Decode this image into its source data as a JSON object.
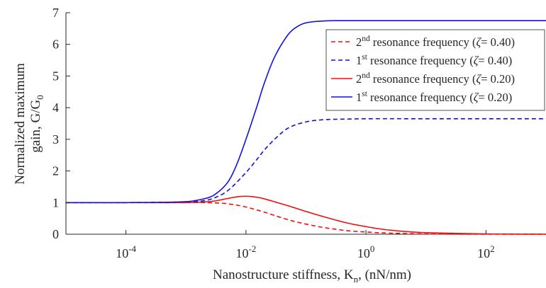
{
  "chart_data": {
    "type": "line",
    "xlabel": "Nanostructure stiffness, K_n, (nN/nm)",
    "ylabel": [
      "Normalized maximum",
      "gain, G/G_0"
    ],
    "x_scale": "log",
    "xlim": [
      1e-05,
      1000
    ],
    "ylim": [
      0,
      7
    ],
    "x_ticks": [
      0.0001,
      0.01,
      1,
      100
    ],
    "x_tick_labels": [
      {
        "base": "10",
        "exp": "-4"
      },
      {
        "base": "10",
        "exp": "-2"
      },
      {
        "base": "10",
        "exp": "0"
      },
      {
        "base": "10",
        "exp": "2"
      }
    ],
    "y_ticks": [
      0,
      1,
      2,
      3,
      4,
      5,
      6,
      7
    ],
    "y_tick_labels": [
      "0",
      "1",
      "2",
      "3",
      "4",
      "5",
      "6",
      "7"
    ],
    "grid": false,
    "legend_position": "top-right",
    "colors": {
      "blue": "#1010e0",
      "red": "#ee1111"
    },
    "series": [
      {
        "name": "2nd resonance frequency (ζ= 0.40)",
        "legend": {
          "pre": "2",
          "sup": "nd",
          "post": " resonance frequency (",
          "zeta": "ζ",
          "value": "= 0.40)"
        },
        "color": "#ee1111",
        "dash": "dashed",
        "x": [
          1e-05,
          0.0001,
          0.001,
          0.002,
          0.003,
          0.004,
          0.005,
          0.007,
          0.01,
          0.02,
          0.05,
          0.1,
          0.2,
          0.5,
          1,
          2,
          10,
          100,
          1000
        ],
        "y": [
          1,
          1,
          1,
          1,
          0.99,
          0.98,
          0.96,
          0.92,
          0.86,
          0.7,
          0.46,
          0.32,
          0.21,
          0.11,
          0.07,
          0.04,
          0.01,
          0.0,
          0.0
        ]
      },
      {
        "name": "1st resonance frequency (ζ= 0.40)",
        "legend": {
          "pre": "1",
          "sup": "st",
          "post": " resonance frequency (",
          "zeta": "ζ",
          "value": "= 0.40)"
        },
        "color": "#1010e0",
        "dash": "dashed",
        "x": [
          1e-05,
          0.0001,
          0.001,
          0.002,
          0.003,
          0.005,
          0.01,
          0.015,
          0.02,
          0.03,
          0.05,
          0.1,
          0.2,
          0.5,
          1,
          10,
          1000
        ],
        "y": [
          1,
          1,
          1.02,
          1.06,
          1.15,
          1.38,
          1.95,
          2.35,
          2.65,
          3.0,
          3.35,
          3.55,
          3.62,
          3.64,
          3.65,
          3.65,
          3.65
        ]
      },
      {
        "name": "2nd resonance frequency (ζ= 0.20)",
        "legend": {
          "pre": "2",
          "sup": "nd",
          "post": " resonance frequency (",
          "zeta": "ζ",
          "value": "= 0.20)"
        },
        "color": "#ee1111",
        "dash": "solid",
        "x": [
          1e-05,
          0.0001,
          0.001,
          0.002,
          0.003,
          0.005,
          0.007,
          0.01,
          0.015,
          0.02,
          0.05,
          0.1,
          0.2,
          0.5,
          1,
          2,
          5,
          10,
          100,
          1000
        ],
        "y": [
          1,
          1,
          1.0,
          1.02,
          1.05,
          1.13,
          1.18,
          1.2,
          1.17,
          1.12,
          0.9,
          0.72,
          0.55,
          0.35,
          0.24,
          0.15,
          0.08,
          0.05,
          0.01,
          0.0
        ]
      },
      {
        "name": "1st resonance frequency (ζ= 0.20)",
        "legend": {
          "pre": "1",
          "sup": "st",
          "post": " resonance frequency (",
          "zeta": "ζ",
          "value": "= 0.20)"
        },
        "color": "#1010e0",
        "dash": "solid",
        "x": [
          1e-05,
          0.0001,
          0.001,
          0.002,
          0.003,
          0.005,
          0.007,
          0.01,
          0.015,
          0.02,
          0.03,
          0.05,
          0.07,
          0.1,
          0.2,
          0.5,
          1,
          10,
          1000
        ],
        "y": [
          1,
          1,
          1.03,
          1.12,
          1.25,
          1.65,
          2.2,
          3.0,
          4.0,
          4.75,
          5.6,
          6.3,
          6.55,
          6.68,
          6.74,
          6.75,
          6.75,
          6.75,
          6.75
        ]
      }
    ]
  }
}
